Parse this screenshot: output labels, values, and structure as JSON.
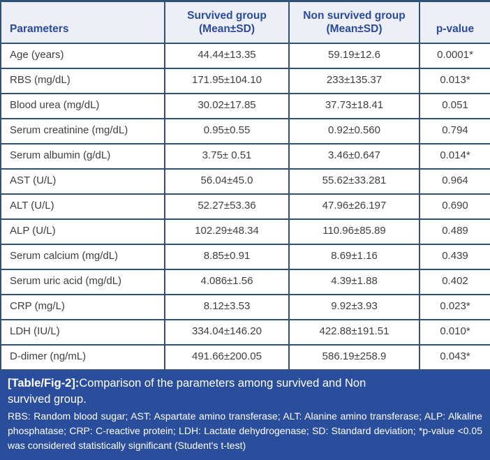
{
  "table": {
    "columns": [
      {
        "key": "parameter",
        "label": "Parameters"
      },
      {
        "key": "survived",
        "label": "Survived group\n(Mean±SD)"
      },
      {
        "key": "non_survived",
        "label": "Non survived group\n(Mean±SD)"
      },
      {
        "key": "p_value",
        "label": "p-value"
      }
    ],
    "rows": [
      [
        "Age (years)",
        "44.44±13.35",
        "59.19±12.6",
        "0.0001*"
      ],
      [
        "RBS (mg/dL)",
        "171.95±104.10",
        "233±135.37",
        "0.013*"
      ],
      [
        "Blood urea (mg/dL)",
        "30.02±17.85",
        "37.73±18.41",
        "0.051"
      ],
      [
        "Serum creatinine (mg/dL)",
        "0.95±0.55",
        "0.92±0.560",
        "0.794"
      ],
      [
        "Serum albumin (g/dL)",
        "3.75± 0.51",
        "3.46±0.647",
        "0.014*"
      ],
      [
        "AST (U/L)",
        "56.04±45.0",
        "55.62±33.281",
        "0.964"
      ],
      [
        "ALT (U/L)",
        "52.27±53.36",
        "47.96±26.197",
        "0.690"
      ],
      [
        "ALP (U/L)",
        "102.29±48.34",
        "110.96±85.89",
        "0.489"
      ],
      [
        "Serum calcium (mg/dL)",
        "8.85±0.91",
        "8.69±1.16",
        "0.439"
      ],
      [
        "Serum uric acid (mg/dL)",
        "4.086±1.56",
        "4.39±1.88",
        "0.402"
      ],
      [
        "CRP (mg/L)",
        "8.12±3.53",
        "9.92±3.93",
        "0.023*"
      ],
      [
        "LDH (IU/L)",
        "334.04±146.20",
        "422.88±191.51",
        "0.010*"
      ],
      [
        "D-dimer (ng/mL)",
        "491.66±200.05",
        "586.19±258.9",
        "0.043*"
      ]
    ]
  },
  "caption": {
    "tag": "[Table/Fig-2]:",
    "text": "Comparison of the parameters among survived and Non\nsurvived group."
  },
  "footnote": "RBS: Random blood sugar; AST: Aspartate amino transferase; ALT: Alanine amino transferase; ALP: Alkaline phosphatase; CRP: C-reactive protein; LDH: Lactate dehydrogenase; SD: Standard deviation; *p-value <0.05 was considered statistically significant (Student's t-test)",
  "colors": {
    "header_bg": "#edeff7",
    "header_text": "#2a4a9d",
    "grid_border": "#2f5077",
    "body_text": "#3f3f41",
    "footer_bg": "#2a4d9c",
    "footer_text": "#ffffff"
  },
  "chart_data": {
    "type": "table",
    "title": "[Table/Fig-2]: Comparison of the parameters among survived and Non survived group.",
    "columns": [
      "Parameters",
      "Survived group (Mean±SD)",
      "Non survived group (Mean±SD)",
      "p-value"
    ],
    "rows": [
      [
        "Age (years)",
        "44.44±13.35",
        "59.19±12.6",
        "0.0001*"
      ],
      [
        "RBS (mg/dL)",
        "171.95±104.10",
        "233±135.37",
        "0.013*"
      ],
      [
        "Blood urea (mg/dL)",
        "30.02±17.85",
        "37.73±18.41",
        "0.051"
      ],
      [
        "Serum creatinine (mg/dL)",
        "0.95±0.55",
        "0.92±0.560",
        "0.794"
      ],
      [
        "Serum albumin (g/dL)",
        "3.75± 0.51",
        "3.46±0.647",
        "0.014*"
      ],
      [
        "AST (U/L)",
        "56.04±45.0",
        "55.62±33.281",
        "0.964"
      ],
      [
        "ALT (U/L)",
        "52.27±53.36",
        "47.96±26.197",
        "0.690"
      ],
      [
        "ALP (U/L)",
        "102.29±48.34",
        "110.96±85.89",
        "0.489"
      ],
      [
        "Serum calcium (mg/dL)",
        "8.85±0.91",
        "8.69±1.16",
        "0.439"
      ],
      [
        "Serum uric acid (mg/dL)",
        "4.086±1.56",
        "4.39±1.88",
        "0.402"
      ],
      [
        "CRP (mg/L)",
        "8.12±3.53",
        "9.92±3.93",
        "0.023*"
      ],
      [
        "LDH (IU/L)",
        "334.04±146.20",
        "422.88±191.51",
        "0.010*"
      ],
      [
        "D-dimer (ng/mL)",
        "491.66±200.05",
        "586.19±258.9",
        "0.043*"
      ]
    ]
  }
}
